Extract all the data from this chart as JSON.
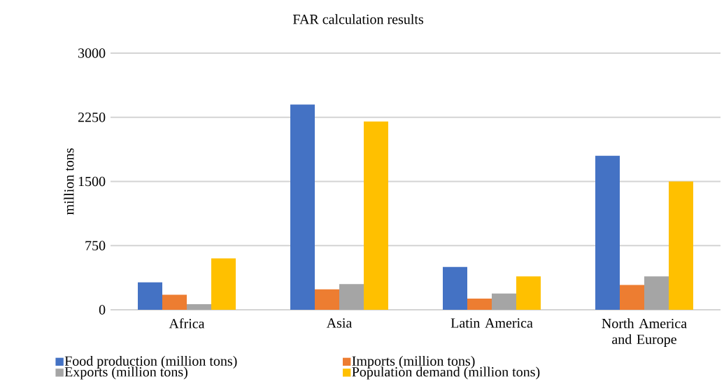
{
  "chart_data": {
    "type": "bar",
    "title": "FAR calculation results",
    "ylabel": "million tons",
    "categories": [
      "Africa",
      "Asia",
      "Latin America",
      "North America and Europe"
    ],
    "series": [
      {
        "name": "Food production (million tons)",
        "color": "#4472c4",
        "values": [
          320,
          2400,
          500,
          1800
        ]
      },
      {
        "name": "Imports (million tons)",
        "color": "#ed7d31",
        "values": [
          175,
          240,
          130,
          290
        ]
      },
      {
        "name": "Exports (million tons)",
        "color": "#a5a5a5",
        "values": [
          65,
          300,
          190,
          390
        ]
      },
      {
        "name": "Population demand (million tons)",
        "color": "#ffc000",
        "values": [
          600,
          2200,
          390,
          1500
        ]
      }
    ],
    "ylim": [
      0,
      3000
    ],
    "yticks": [
      0,
      750,
      1500,
      2250,
      3000
    ],
    "grid": "y",
    "legend": "bottom"
  }
}
